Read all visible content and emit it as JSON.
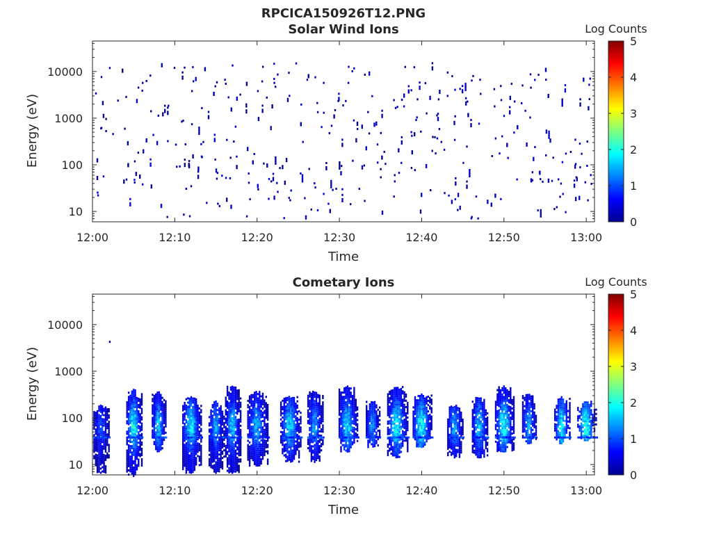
{
  "figure": {
    "filename_title": "RPCICA150926T12.PNG"
  },
  "chart_data": [
    {
      "type": "heatmap",
      "title": "Solar Wind Ions",
      "xlabel": "Time",
      "ylabel": "Energy (eV)",
      "y_scale": "log",
      "ylim": [
        6,
        45000
      ],
      "xlim": [
        "12:00",
        "13:01"
      ],
      "x_ticks": [
        "12:00",
        "12:10",
        "12:20",
        "12:30",
        "12:40",
        "12:50",
        "13:00"
      ],
      "y_ticks": [
        "10",
        "100",
        "1000",
        "10000"
      ],
      "colorbar": {
        "label": "Log Counts",
        "range": [
          0,
          5
        ],
        "ticks": [
          "0",
          "1",
          "2",
          "3",
          "4",
          "5"
        ]
      },
      "pattern": "sparse",
      "points": [
        {
          "t": "12:01",
          "e": 8000,
          "c": 0.2
        },
        {
          "t": "12:02",
          "e": 12500,
          "c": 0.3
        },
        {
          "t": "12:01",
          "e": 650,
          "c": 0.2
        },
        {
          "t": "12:03",
          "e": 2500,
          "c": 0.2
        },
        {
          "t": "12:04",
          "e": 3000,
          "c": 0.2
        },
        {
          "t": "12:06",
          "e": 6000,
          "c": 0.2
        },
        {
          "t": "12:05",
          "e": 50,
          "c": 0.5
        },
        {
          "t": "12:06",
          "e": 40,
          "c": 0.4
        },
        {
          "t": "12:09",
          "e": 8,
          "c": 0.3
        },
        {
          "t": "12:12",
          "e": 4000,
          "c": 0.2
        },
        {
          "t": "12:11",
          "e": 9,
          "c": 0.2
        },
        {
          "t": "12:16",
          "e": 7000,
          "c": 0.2
        },
        {
          "t": "12:20",
          "e": 4000,
          "c": 0.2
        },
        {
          "t": "12:22",
          "e": 6000,
          "c": 0.2
        },
        {
          "t": "12:26",
          "e": 7000,
          "c": 0.2
        },
        {
          "t": "12:28",
          "e": 6000,
          "c": 0.2
        },
        {
          "t": "12:31",
          "e": 6000,
          "c": 0.2
        },
        {
          "t": "12:33",
          "e": 9000,
          "c": 0.2
        },
        {
          "t": "12:39",
          "e": 13000,
          "c": 0.3
        },
        {
          "t": "12:47",
          "e": 7000,
          "c": 0.2
        },
        {
          "t": "12:55",
          "e": 7000,
          "c": 0.2
        },
        {
          "t": "12:28",
          "e": 25,
          "c": 0.4
        },
        {
          "t": "12:46",
          "e": 8,
          "c": 0.4
        },
        {
          "t": "12:57",
          "e": 120,
          "c": 0.5
        },
        {
          "t": "13:00",
          "e": 100,
          "c": 0.5
        }
      ]
    },
    {
      "type": "heatmap",
      "title": "Cometary Ions",
      "xlabel": "Time",
      "ylabel": "Energy (eV)",
      "y_scale": "log",
      "ylim": [
        6,
        45000
      ],
      "xlim": [
        "12:00",
        "13:01"
      ],
      "x_ticks": [
        "12:00",
        "12:10",
        "12:20",
        "12:30",
        "12:40",
        "12:50",
        "13:00"
      ],
      "y_ticks": [
        "10",
        "100",
        "1000",
        "10000"
      ],
      "colorbar": {
        "label": "Log Counts",
        "range": [
          0,
          5
        ],
        "ticks": [
          "0",
          "1",
          "2",
          "3",
          "4",
          "5"
        ]
      },
      "pattern": "bursts",
      "isolated_points": [
        {
          "t": "12:02",
          "e": 4500,
          "c": 0.2
        }
      ],
      "bursts": [
        {
          "t": "12:01",
          "width_min": 1.0,
          "e_low": 7,
          "e_high": 200,
          "peak": 0.9
        },
        {
          "t": "12:05",
          "width_min": 1.0,
          "e_low": 6,
          "e_high": 450,
          "peak": 1.9
        },
        {
          "t": "12:08",
          "width_min": 0.9,
          "e_low": 20,
          "e_high": 400,
          "peak": 1.5
        },
        {
          "t": "12:12",
          "width_min": 1.2,
          "e_low": 7,
          "e_high": 300,
          "peak": 1.7
        },
        {
          "t": "12:15",
          "width_min": 1.0,
          "e_low": 7,
          "e_high": 250,
          "peak": 1.3
        },
        {
          "t": "12:17",
          "width_min": 1.0,
          "e_low": 7,
          "e_high": 500,
          "peak": 1.5
        },
        {
          "t": "12:20",
          "width_min": 1.3,
          "e_low": 10,
          "e_high": 400,
          "peak": 1.4
        },
        {
          "t": "12:24",
          "width_min": 1.3,
          "e_low": 12,
          "e_high": 300,
          "peak": 1.6
        },
        {
          "t": "12:27",
          "width_min": 1.0,
          "e_low": 12,
          "e_high": 400,
          "peak": 1.3
        },
        {
          "t": "12:31",
          "width_min": 1.2,
          "e_low": 20,
          "e_high": 500,
          "peak": 1.7
        },
        {
          "t": "12:34",
          "width_min": 0.9,
          "e_low": 25,
          "e_high": 250,
          "peak": 1.2
        },
        {
          "t": "12:37",
          "width_min": 1.3,
          "e_low": 15,
          "e_high": 500,
          "peak": 1.8
        },
        {
          "t": "12:40",
          "width_min": 1.2,
          "e_low": 25,
          "e_high": 350,
          "peak": 1.9
        },
        {
          "t": "12:44",
          "width_min": 1.0,
          "e_low": 15,
          "e_high": 200,
          "peak": 1.3
        },
        {
          "t": "12:47",
          "width_min": 1.0,
          "e_low": 15,
          "e_high": 300,
          "peak": 1.5
        },
        {
          "t": "12:50",
          "width_min": 1.2,
          "e_low": 20,
          "e_high": 500,
          "peak": 1.9
        },
        {
          "t": "12:53",
          "width_min": 0.9,
          "e_low": 30,
          "e_high": 350,
          "peak": 1.4
        },
        {
          "t": "12:57",
          "width_min": 1.0,
          "e_low": 30,
          "e_high": 300,
          "peak": 1.8
        },
        {
          "t": "13:00",
          "width_min": 1.2,
          "e_low": 35,
          "e_high": 250,
          "peak": 1.9
        }
      ]
    }
  ]
}
